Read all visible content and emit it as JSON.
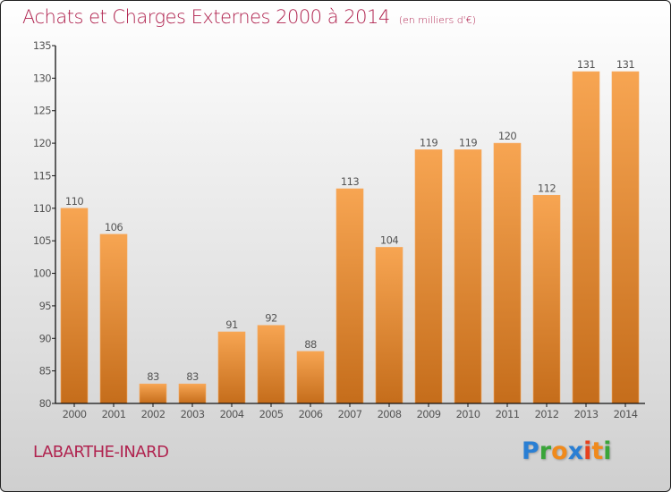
{
  "header": {
    "title": "Achats et Charges Externes 2000 à 2014",
    "subtitle": "(en milliers d'€)"
  },
  "footer": {
    "town": "LABARTHE-INARD",
    "logo_letters": [
      {
        "ch": "P",
        "color": "#2a7fd4"
      },
      {
        "ch": "r",
        "color": "#3aa53a"
      },
      {
        "ch": "o",
        "color": "#f08a1c"
      },
      {
        "ch": "x",
        "color": "#2a7fd4"
      },
      {
        "ch": "i",
        "color": "#e8401c"
      },
      {
        "ch": "t",
        "color": "#f08a1c"
      },
      {
        "ch": "i",
        "color": "#3aa53a"
      }
    ]
  },
  "chart_data": {
    "type": "bar",
    "title": "Achats et Charges Externes 2000 à 2014",
    "subtitle": "(en milliers d'€)",
    "xlabel": "",
    "ylabel": "",
    "categories": [
      "2000",
      "2001",
      "2002",
      "2003",
      "2004",
      "2005",
      "2006",
      "2007",
      "2008",
      "2009",
      "2010",
      "2011",
      "2012",
      "2013",
      "2014"
    ],
    "values": [
      110,
      106,
      83,
      83,
      91,
      92,
      88,
      113,
      104,
      119,
      119,
      120,
      112,
      131,
      131
    ],
    "ylim": [
      80,
      135
    ],
    "yticks": [
      80,
      85,
      90,
      95,
      100,
      105,
      110,
      115,
      120,
      125,
      130,
      135
    ],
    "grid": false,
    "legend": "none",
    "bar_color_top": "#f7a552",
    "bar_color_bottom": "#c56d1b",
    "title_color": "#b0234f"
  }
}
